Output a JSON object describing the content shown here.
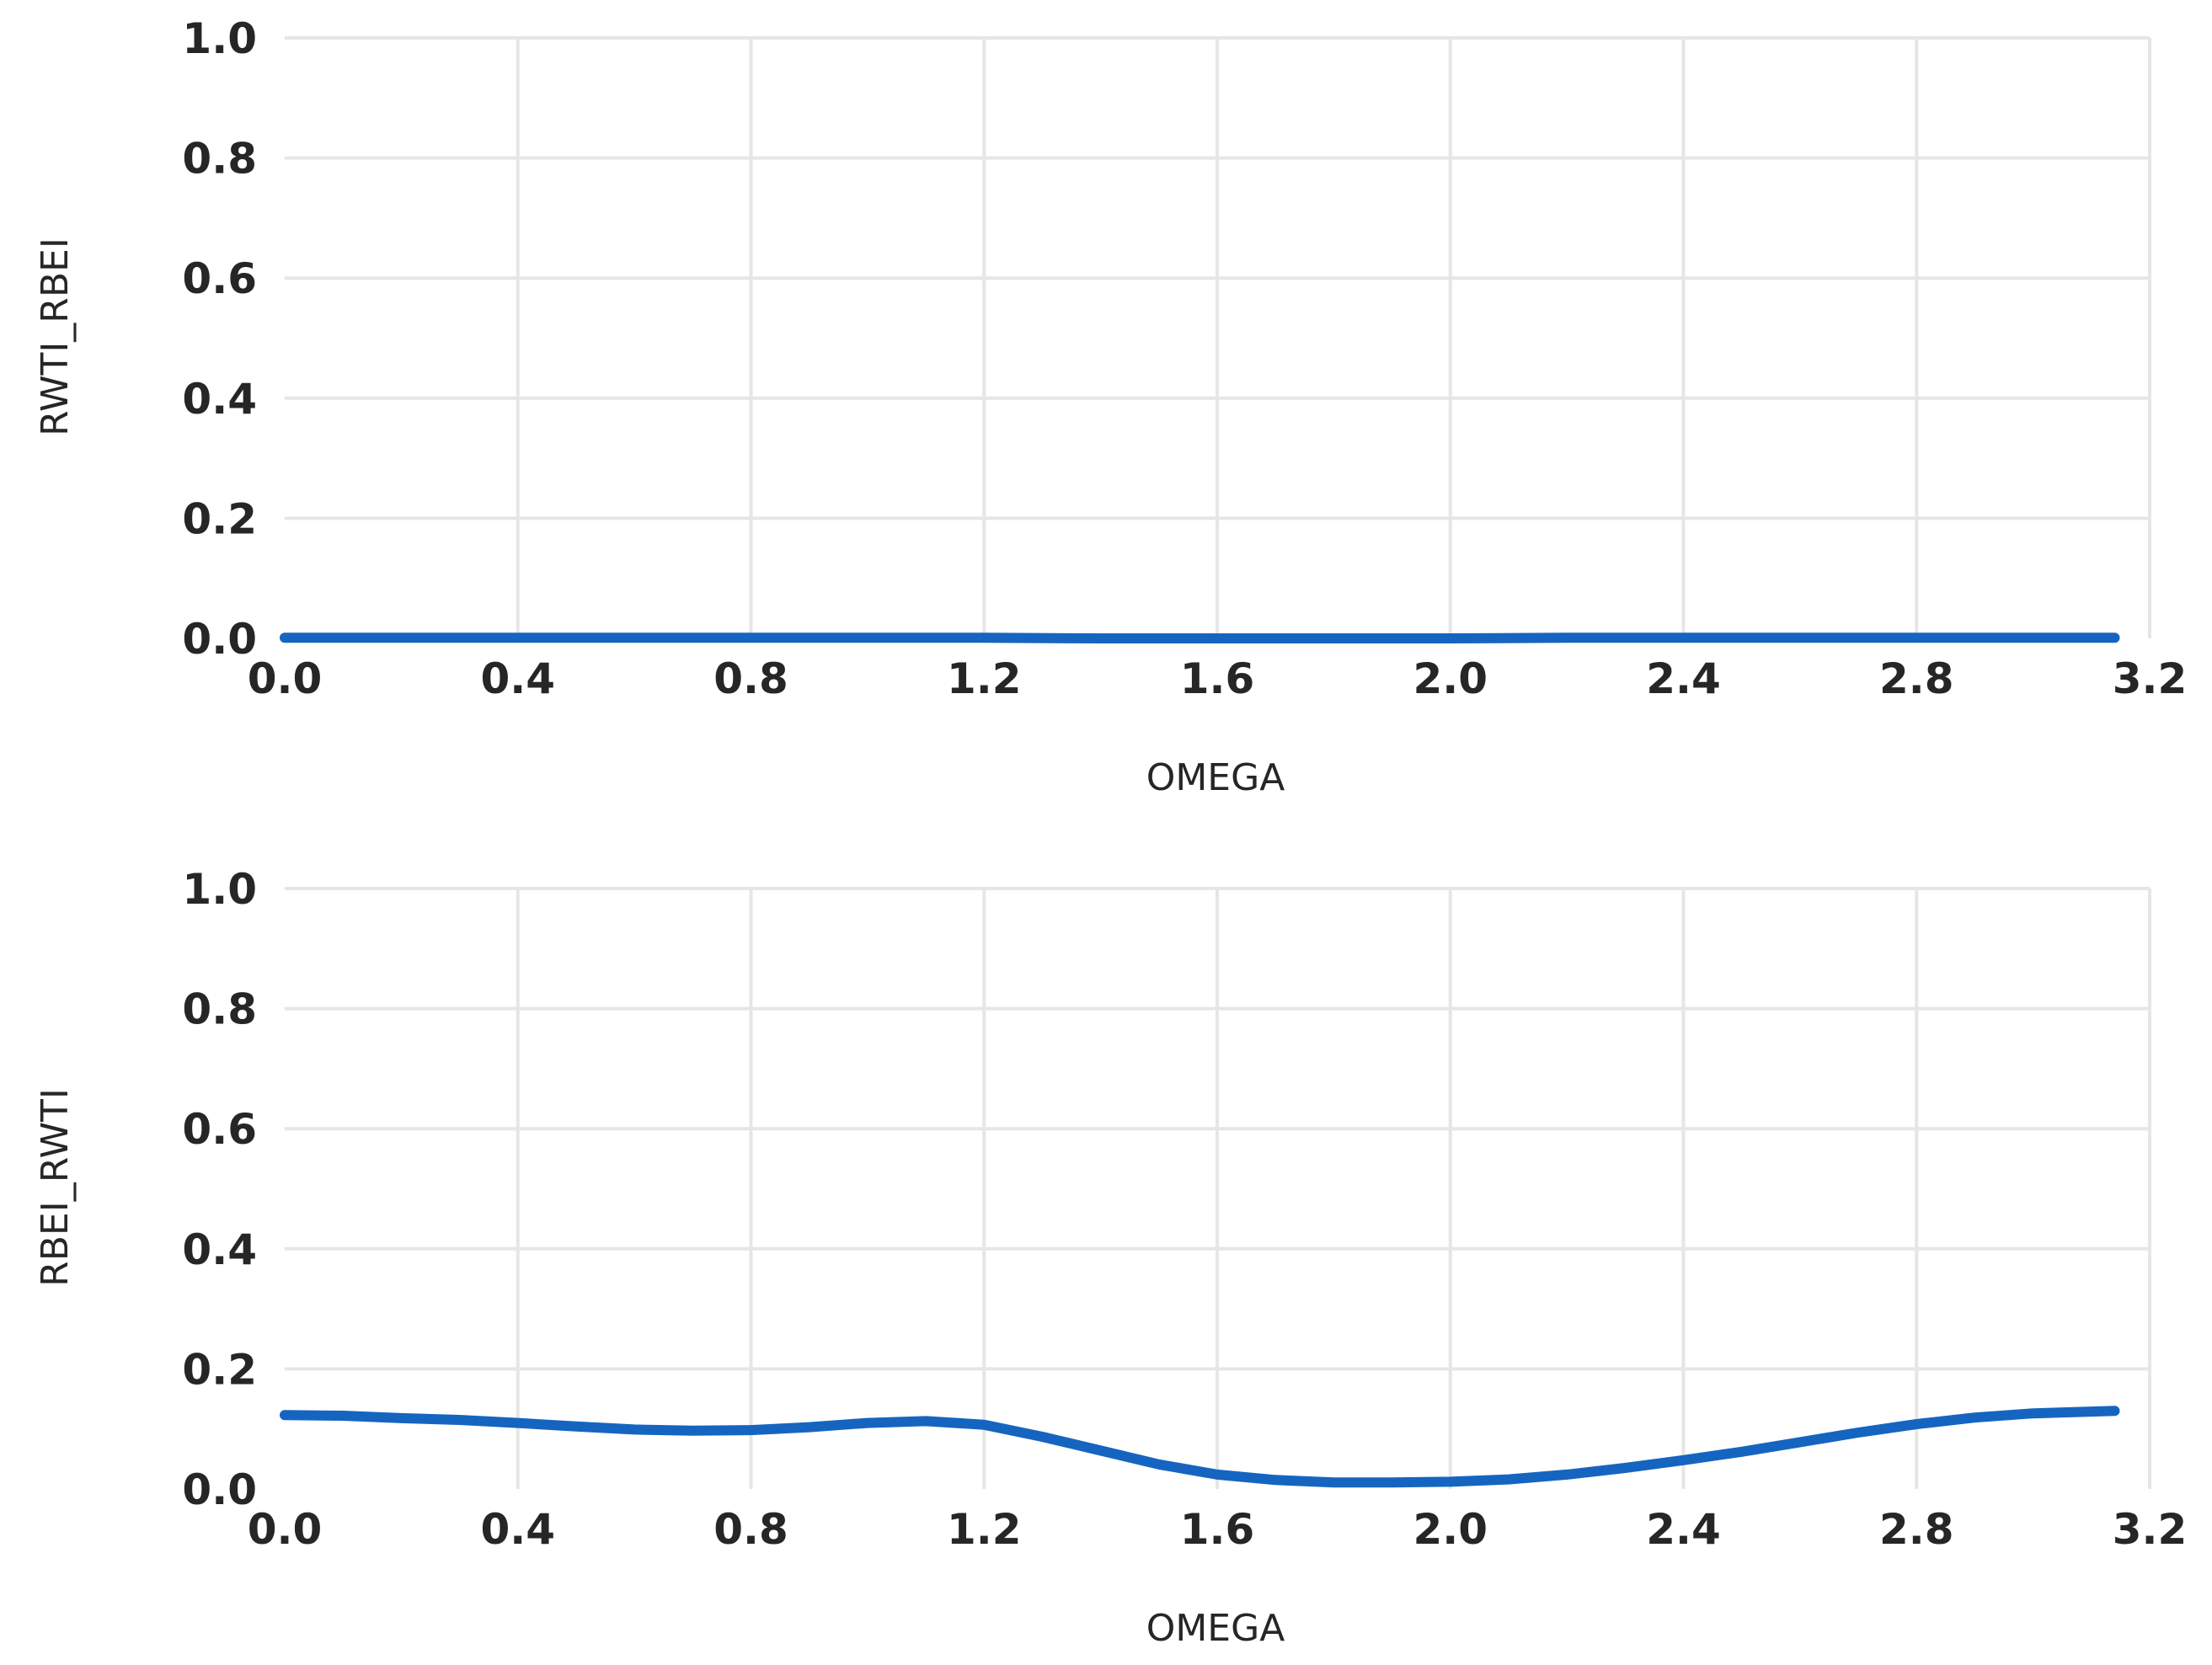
{
  "chart_data": [
    {
      "type": "line",
      "xlabel": "OMEGA",
      "ylabel": "RWTI_RBEI",
      "xlim": [
        0.0,
        3.2
      ],
      "ylim": [
        0.0,
        1.0
      ],
      "xticks": [
        "0.0",
        "0.4",
        "0.8",
        "1.2",
        "1.6",
        "2.0",
        "2.4",
        "2.8",
        "3.2"
      ],
      "yticks": [
        "0.0",
        "0.2",
        "0.4",
        "0.6",
        "0.8",
        "1.0"
      ],
      "grid": true,
      "line_color": "#1565C0",
      "x": [
        0.0,
        0.2,
        0.4,
        0.6,
        0.8,
        1.0,
        1.2,
        1.4,
        1.6,
        1.8,
        2.0,
        2.2,
        2.4,
        2.6,
        2.8,
        3.0,
        3.14
      ],
      "y": [
        0.001,
        0.001,
        0.001,
        0.001,
        0.001,
        0.001,
        0.001,
        0.0,
        0.0,
        0.0,
        0.0,
        0.001,
        0.001,
        0.001,
        0.001,
        0.001,
        0.001
      ]
    },
    {
      "type": "line",
      "xlabel": "OMEGA",
      "ylabel": "RBEI_RWTI",
      "xlim": [
        0.0,
        3.2
      ],
      "ylim": [
        0.0,
        1.0
      ],
      "xticks": [
        "0.0",
        "0.4",
        "0.8",
        "1.2",
        "1.6",
        "2.0",
        "2.4",
        "2.8",
        "3.2"
      ],
      "yticks": [
        "0.0",
        "0.2",
        "0.4",
        "0.6",
        "0.8",
        "1.0"
      ],
      "grid": true,
      "line_color": "#1565C0",
      "x": [
        0.0,
        0.1,
        0.2,
        0.3,
        0.4,
        0.5,
        0.6,
        0.7,
        0.8,
        0.9,
        1.0,
        1.1,
        1.2,
        1.3,
        1.4,
        1.5,
        1.6,
        1.7,
        1.8,
        1.9,
        2.0,
        2.1,
        2.2,
        2.3,
        2.4,
        2.5,
        2.6,
        2.7,
        2.8,
        2.9,
        3.0,
        3.14
      ],
      "y": [
        0.123,
        0.122,
        0.118,
        0.115,
        0.11,
        0.104,
        0.099,
        0.097,
        0.098,
        0.103,
        0.11,
        0.113,
        0.107,
        0.087,
        0.064,
        0.041,
        0.024,
        0.015,
        0.011,
        0.011,
        0.012,
        0.016,
        0.024,
        0.035,
        0.048,
        0.062,
        0.078,
        0.094,
        0.108,
        0.119,
        0.126,
        0.13
      ]
    }
  ]
}
